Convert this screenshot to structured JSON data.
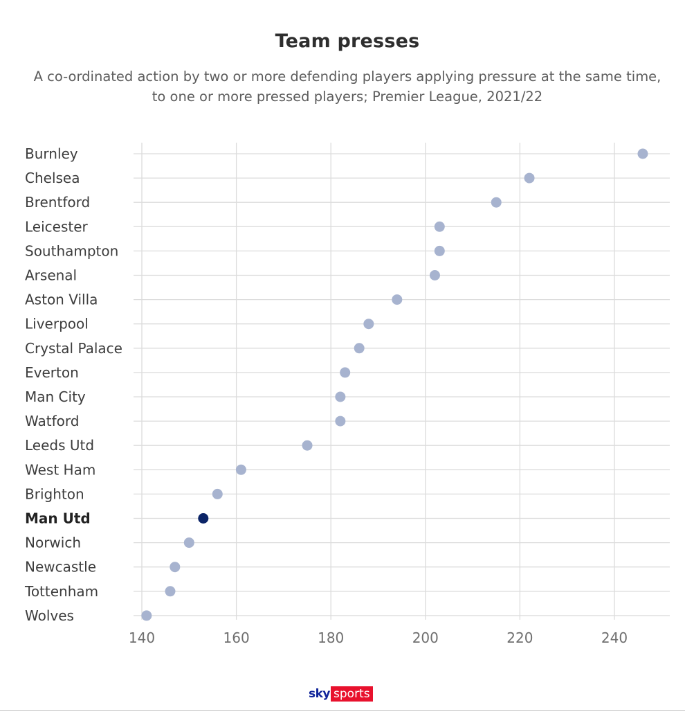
{
  "title": "Team presses",
  "subtitle_line1": "A co-ordinated action by two or more defending players applying pressure at the same time,",
  "subtitle_line2": "to one or more pressed players; Premier League, 2021/22",
  "brand": {
    "sky": "sky",
    "sports": "sports"
  },
  "colors": {
    "dot": "#a7b3cf",
    "highlight": "#0b2467",
    "grid": "#dcdcdc"
  },
  "chart_data": {
    "type": "scatter",
    "title": "Team presses",
    "xlim": [
      140,
      250
    ],
    "xticks": [
      140,
      160,
      180,
      200,
      220,
      240
    ],
    "grid": true,
    "highlight": "Man Utd",
    "categories": [
      "Burnley",
      "Chelsea",
      "Brentford",
      "Leicester",
      "Southampton",
      "Arsenal",
      "Aston Villa",
      "Liverpool",
      "Crystal Palace",
      "Everton",
      "Man City",
      "Watford",
      "Leeds Utd",
      "West Ham",
      "Brighton",
      "Man Utd",
      "Norwich",
      "Newcastle",
      "Tottenham",
      "Wolves"
    ],
    "values": [
      246,
      222,
      215,
      203,
      203,
      202,
      194,
      188,
      186,
      183,
      182,
      182,
      175,
      161,
      156,
      153,
      150,
      147,
      146,
      141
    ]
  }
}
